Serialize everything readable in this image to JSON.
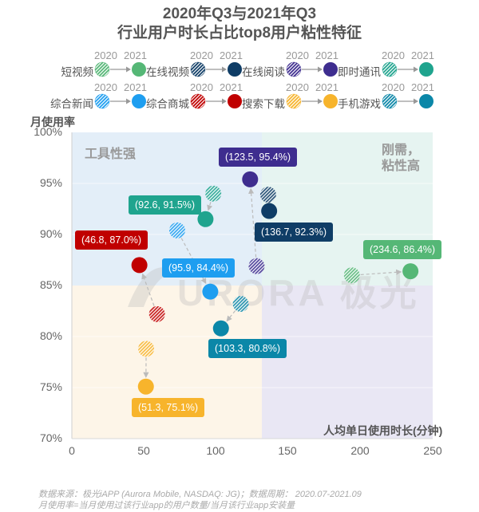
{
  "title": {
    "line1": "2020年Q3与2021年Q3",
    "line2": "行业用户时长占比top8用户粘性特征"
  },
  "legend": {
    "year_from": "2020",
    "year_to": "2021",
    "items": [
      {
        "name": "短视频",
        "color": "#55b776"
      },
      {
        "name": "在线视频",
        "color": "#0f3d66"
      },
      {
        "name": "在线阅读",
        "color": "#3e2d8f"
      },
      {
        "name": "即时通讯",
        "color": "#1fa48e"
      },
      {
        "name": "综合新闻",
        "color": "#1e9ef0"
      },
      {
        "name": "综合商城",
        "color": "#c00000"
      },
      {
        "name": "搜索下载",
        "color": "#f7b42c"
      },
      {
        "name": "手机游戏",
        "color": "#0b87a8"
      }
    ]
  },
  "quadrants": {
    "top_left": "工具性强",
    "top_right_line1": "刚需，",
    "top_right_line2": "粘性高"
  },
  "axes": {
    "y_label": "月使用率",
    "x_label": "人均单日使用时长(分钟)",
    "y_ticks": [
      "100%",
      "95%",
      "90%",
      "85%",
      "80%",
      "75%",
      "70%"
    ],
    "x_ticks": [
      "0",
      "50",
      "100",
      "150",
      "200",
      "250"
    ]
  },
  "callouts": [
    {
      "name": "短视频",
      "text": "(234.6, 86.4%)"
    },
    {
      "name": "在线视频",
      "text": "(136.7, 92.3%)"
    },
    {
      "name": "在线阅读",
      "text": "(123.5, 95.4%)"
    },
    {
      "name": "即时通讯",
      "text": "(92.6, 91.5%)"
    },
    {
      "name": "综合新闻",
      "text": "(95.9, 84.4%)"
    },
    {
      "name": "综合商城",
      "text": "(46.8, 87.0%)"
    },
    {
      "name": "搜索下载",
      "text": "(51.3, 75.1%)"
    },
    {
      "name": "手机游戏",
      "text": "(103.3, 80.8%)"
    }
  ],
  "watermark": "AURORA 极光",
  "footnote": {
    "line1": "数据来源：极光iAPP (Aurora Mobile, NASDAQ: JG)；数据周期： 2020.07-2021.09",
    "line2": "月使用率=当月使用过该行业app的用户数量/当月该行业app安装量"
  },
  "chart_data": {
    "type": "scatter",
    "title": "2020年Q3与2021年Q3 行业用户时长占比top8用户粘性特征",
    "xlabel": "人均单日使用时长(分钟)",
    "ylabel": "月使用率",
    "xlim": [
      0,
      250
    ],
    "ylim": [
      70,
      100
    ],
    "x_ticks": [
      0,
      50,
      100,
      150,
      200,
      250
    ],
    "y_ticks": [
      "70%",
      "75%",
      "80%",
      "85%",
      "90%",
      "95%",
      "100%"
    ],
    "quadrant_split": {
      "x": 131.7,
      "y": 85
    },
    "quadrant_labels": {
      "top_left": "工具性强",
      "top_right": "刚需，粘性高"
    },
    "legend_position": "top",
    "series": [
      {
        "name": "短视频",
        "color": "#55b776",
        "2020": {
          "x": 194,
          "y": 86.0
        },
        "2021": {
          "x": 234.6,
          "y": 86.4
        }
      },
      {
        "name": "在线视频",
        "color": "#0f3d66",
        "2020": {
          "x": 136,
          "y": 93.9
        },
        "2021": {
          "x": 136.7,
          "y": 92.3
        }
      },
      {
        "name": "在线阅读",
        "color": "#3e2d8f",
        "2020": {
          "x": 128,
          "y": 86.9
        },
        "2021": {
          "x": 123.5,
          "y": 95.4
        }
      },
      {
        "name": "即时通讯",
        "color": "#1fa48e",
        "2020": {
          "x": 98,
          "y": 94.0
        },
        "2021": {
          "x": 92.6,
          "y": 91.5
        }
      },
      {
        "name": "综合新闻",
        "color": "#1e9ef0",
        "2020": {
          "x": 73,
          "y": 90.4
        },
        "2021": {
          "x": 95.9,
          "y": 84.4
        }
      },
      {
        "name": "综合商城",
        "color": "#c00000",
        "2020": {
          "x": 59,
          "y": 82.2
        },
        "2021": {
          "x": 46.8,
          "y": 87.0
        }
      },
      {
        "name": "搜索下载",
        "color": "#f7b42c",
        "2020": {
          "x": 51.5,
          "y": 78.8
        },
        "2021": {
          "x": 51.3,
          "y": 75.1
        }
      },
      {
        "name": "手机游戏",
        "color": "#0b87a8",
        "2020": {
          "x": 117,
          "y": 83.2
        },
        "2021": {
          "x": 103.3,
          "y": 80.8
        }
      }
    ]
  }
}
